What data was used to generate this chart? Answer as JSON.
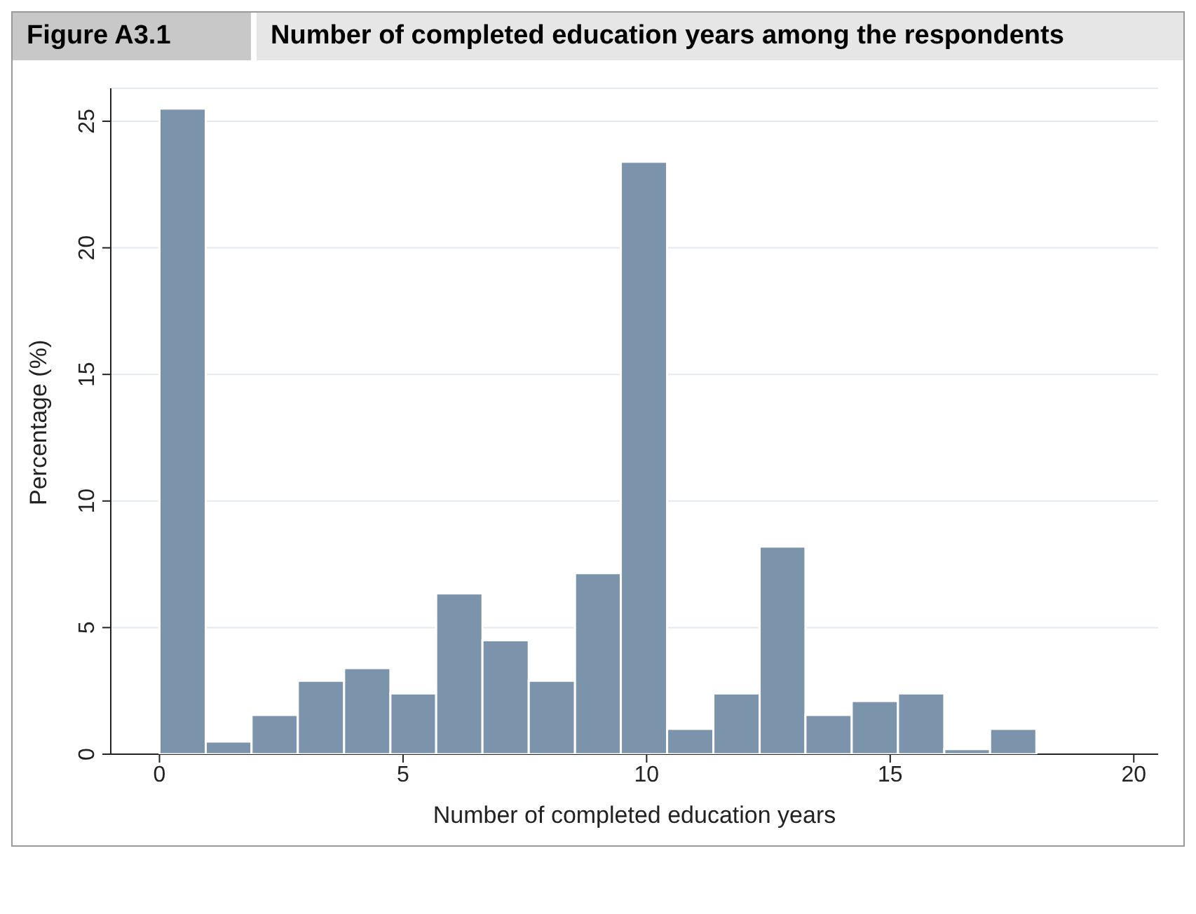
{
  "chart_data": {
    "type": "histogram",
    "title": "Figure A3.1",
    "subtitle": "Number of completed education years among the respondents",
    "xlabel": "Number of completed education years",
    "ylabel": "Percentage (%)",
    "bins": [
      0,
      0.95,
      1.89,
      2.84,
      3.79,
      4.74,
      5.68,
      6.63,
      7.58,
      8.53,
      9.47,
      10.42,
      11.37,
      12.32,
      13.26,
      14.21,
      15.16,
      16.11,
      17.05,
      18
    ],
    "values": [
      25.5,
      0.5,
      1.55,
      2.9,
      3.4,
      2.4,
      6.35,
      4.5,
      2.9,
      7.15,
      23.4,
      1.0,
      2.4,
      8.2,
      1.55,
      2.1,
      2.4,
      0.2,
      1.0
    ],
    "color": "#7b93ab",
    "xlim": [
      -1,
      20.5
    ],
    "xticks": [
      0,
      5,
      10,
      15,
      20
    ],
    "ylim": [
      0,
      26.3
    ],
    "yticks": [
      0,
      5,
      10,
      15,
      20,
      25
    ],
    "grid": "y"
  }
}
